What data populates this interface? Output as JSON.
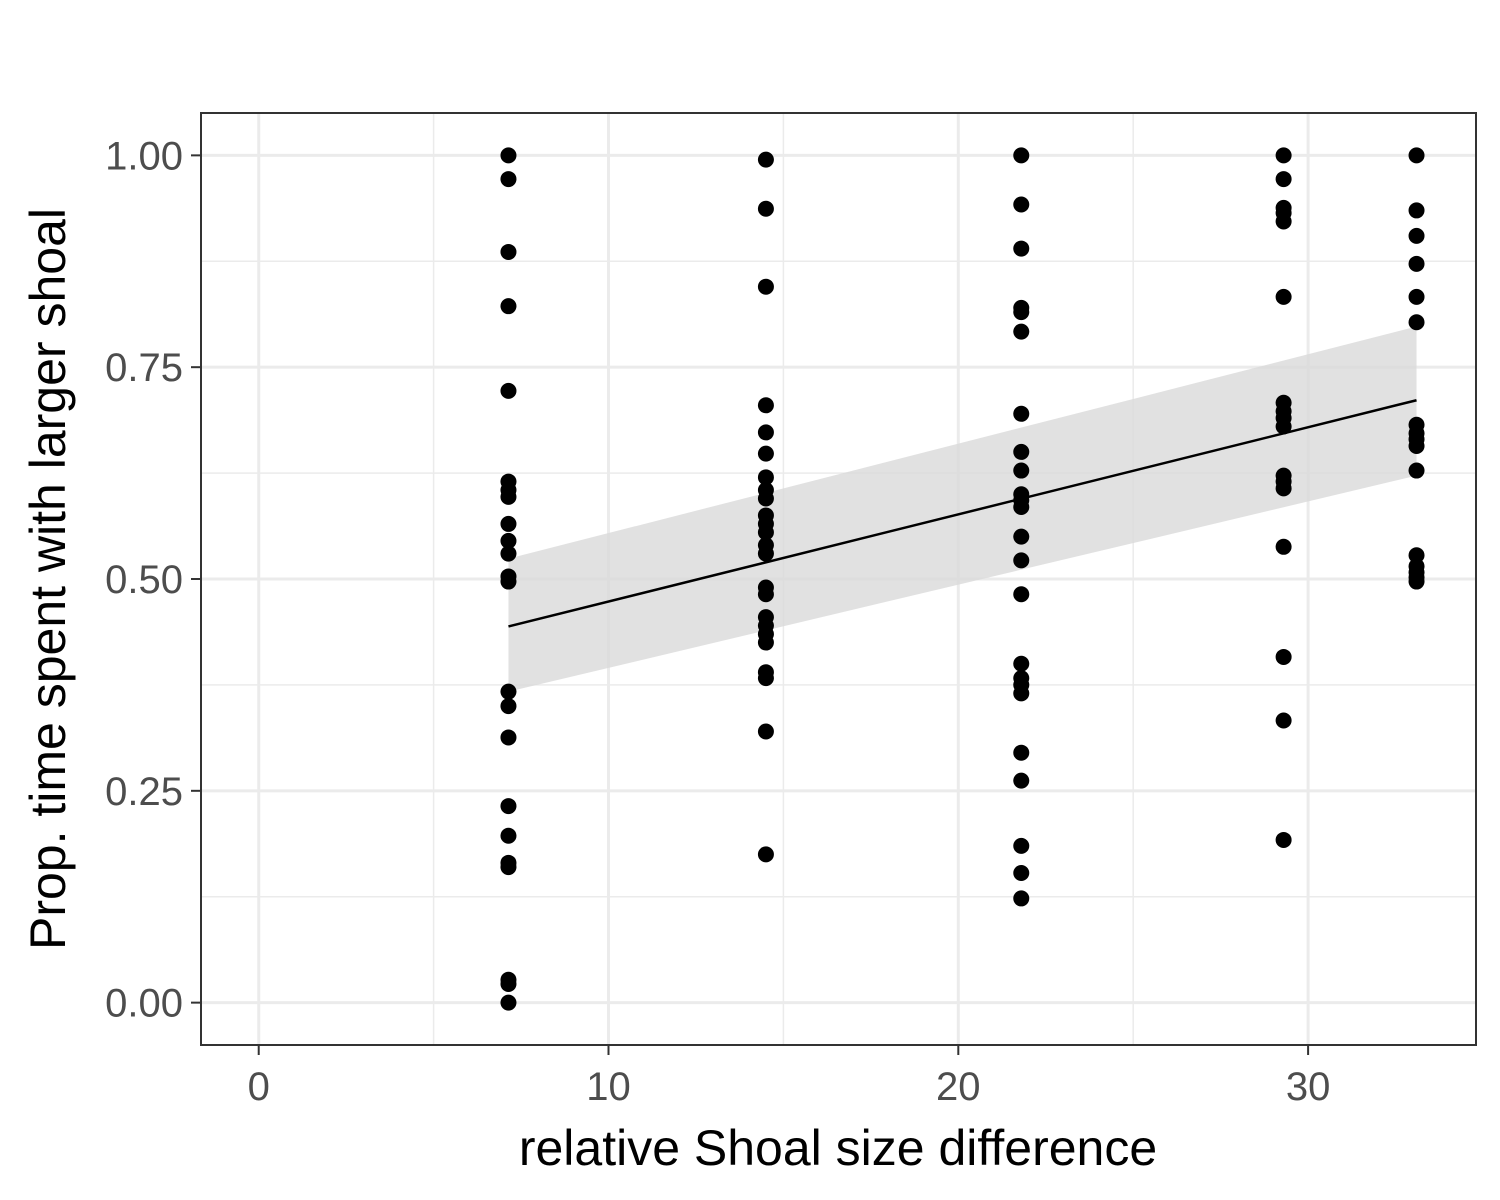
{
  "chart_data": {
    "type": "scatter",
    "xlabel": "relative Shoal size difference",
    "ylabel": "Prop. time spent with larger shoal",
    "xlim": [
      -1.65,
      34.8
    ],
    "ylim": [
      -0.05,
      1.05
    ],
    "x_ticks": [
      0,
      10,
      20,
      30
    ],
    "x_tick_labels": [
      "0",
      "10",
      "20",
      "30"
    ],
    "y_ticks": [
      0,
      0.25,
      0.5,
      0.75,
      1.0
    ],
    "y_tick_labels": [
      "0.00",
      "0.25",
      "0.50",
      "0.75",
      "1.00"
    ],
    "grid": true,
    "colors": {
      "points": "#000000",
      "ribbon": "#d9d9d9",
      "grid": "#ebebeb",
      "panel_border": "#333333"
    },
    "points": [
      {
        "x": 7.14,
        "y": 1.0
      },
      {
        "x": 7.14,
        "y": 0.972
      },
      {
        "x": 7.14,
        "y": 0.886
      },
      {
        "x": 7.14,
        "y": 0.822
      },
      {
        "x": 7.14,
        "y": 0.722
      },
      {
        "x": 7.14,
        "y": 0.615
      },
      {
        "x": 7.14,
        "y": 0.605
      },
      {
        "x": 7.14,
        "y": 0.597
      },
      {
        "x": 7.14,
        "y": 0.565
      },
      {
        "x": 7.14,
        "y": 0.545
      },
      {
        "x": 7.14,
        "y": 0.53
      },
      {
        "x": 7.14,
        "y": 0.503
      },
      {
        "x": 7.14,
        "y": 0.497
      },
      {
        "x": 7.14,
        "y": 0.367
      },
      {
        "x": 7.14,
        "y": 0.35
      },
      {
        "x": 7.14,
        "y": 0.313
      },
      {
        "x": 7.14,
        "y": 0.232
      },
      {
        "x": 7.14,
        "y": 0.197
      },
      {
        "x": 7.14,
        "y": 0.165
      },
      {
        "x": 7.14,
        "y": 0.16
      },
      {
        "x": 7.14,
        "y": 0.027
      },
      {
        "x": 7.14,
        "y": 0.022
      },
      {
        "x": 7.14,
        "y": 0.0
      },
      {
        "x": 14.5,
        "y": 0.995
      },
      {
        "x": 14.5,
        "y": 0.937
      },
      {
        "x": 14.5,
        "y": 0.845
      },
      {
        "x": 14.5,
        "y": 0.705
      },
      {
        "x": 14.5,
        "y": 0.673
      },
      {
        "x": 14.5,
        "y": 0.648
      },
      {
        "x": 14.5,
        "y": 0.62
      },
      {
        "x": 14.5,
        "y": 0.605
      },
      {
        "x": 14.5,
        "y": 0.595
      },
      {
        "x": 14.5,
        "y": 0.575
      },
      {
        "x": 14.5,
        "y": 0.565
      },
      {
        "x": 14.5,
        "y": 0.555
      },
      {
        "x": 14.5,
        "y": 0.54
      },
      {
        "x": 14.5,
        "y": 0.53
      },
      {
        "x": 14.5,
        "y": 0.49
      },
      {
        "x": 14.5,
        "y": 0.482
      },
      {
        "x": 14.5,
        "y": 0.455
      },
      {
        "x": 14.5,
        "y": 0.445
      },
      {
        "x": 14.5,
        "y": 0.435
      },
      {
        "x": 14.5,
        "y": 0.425
      },
      {
        "x": 14.5,
        "y": 0.39
      },
      {
        "x": 14.5,
        "y": 0.383
      },
      {
        "x": 14.5,
        "y": 0.32
      },
      {
        "x": 14.5,
        "y": 0.175
      },
      {
        "x": 21.8,
        "y": 1.0
      },
      {
        "x": 21.8,
        "y": 0.942
      },
      {
        "x": 21.8,
        "y": 0.89
      },
      {
        "x": 21.8,
        "y": 0.82
      },
      {
        "x": 21.8,
        "y": 0.815
      },
      {
        "x": 21.8,
        "y": 0.792
      },
      {
        "x": 21.8,
        "y": 0.695
      },
      {
        "x": 21.8,
        "y": 0.65
      },
      {
        "x": 21.8,
        "y": 0.628
      },
      {
        "x": 21.8,
        "y": 0.6
      },
      {
        "x": 21.8,
        "y": 0.593
      },
      {
        "x": 21.8,
        "y": 0.585
      },
      {
        "x": 21.8,
        "y": 0.55
      },
      {
        "x": 21.8,
        "y": 0.522
      },
      {
        "x": 21.8,
        "y": 0.482
      },
      {
        "x": 21.8,
        "y": 0.4
      },
      {
        "x": 21.8,
        "y": 0.383
      },
      {
        "x": 21.8,
        "y": 0.375
      },
      {
        "x": 21.8,
        "y": 0.365
      },
      {
        "x": 21.8,
        "y": 0.295
      },
      {
        "x": 21.8,
        "y": 0.262
      },
      {
        "x": 21.8,
        "y": 0.185
      },
      {
        "x": 21.8,
        "y": 0.153
      },
      {
        "x": 21.8,
        "y": 0.123
      },
      {
        "x": 29.3,
        "y": 1.0
      },
      {
        "x": 29.3,
        "y": 0.972
      },
      {
        "x": 29.3,
        "y": 0.938
      },
      {
        "x": 29.3,
        "y": 0.932
      },
      {
        "x": 29.3,
        "y": 0.922
      },
      {
        "x": 29.3,
        "y": 0.833
      },
      {
        "x": 29.3,
        "y": 0.708
      },
      {
        "x": 29.3,
        "y": 0.698
      },
      {
        "x": 29.3,
        "y": 0.69
      },
      {
        "x": 29.3,
        "y": 0.68
      },
      {
        "x": 29.3,
        "y": 0.622
      },
      {
        "x": 29.3,
        "y": 0.615
      },
      {
        "x": 29.3,
        "y": 0.607
      },
      {
        "x": 29.3,
        "y": 0.538
      },
      {
        "x": 29.3,
        "y": 0.408
      },
      {
        "x": 29.3,
        "y": 0.333
      },
      {
        "x": 29.3,
        "y": 0.192
      },
      {
        "x": 33.1,
        "y": 1.0
      },
      {
        "x": 33.1,
        "y": 0.935
      },
      {
        "x": 33.1,
        "y": 0.905
      },
      {
        "x": 33.1,
        "y": 0.872
      },
      {
        "x": 33.1,
        "y": 0.833
      },
      {
        "x": 33.1,
        "y": 0.803
      },
      {
        "x": 33.1,
        "y": 0.682
      },
      {
        "x": 33.1,
        "y": 0.672
      },
      {
        "x": 33.1,
        "y": 0.665
      },
      {
        "x": 33.1,
        "y": 0.657
      },
      {
        "x": 33.1,
        "y": 0.628
      },
      {
        "x": 33.1,
        "y": 0.528
      },
      {
        "x": 33.1,
        "y": 0.515
      },
      {
        "x": 33.1,
        "y": 0.508
      },
      {
        "x": 33.1,
        "y": 0.502
      },
      {
        "x": 33.1,
        "y": 0.497
      }
    ],
    "fit": {
      "type": "linear",
      "x": [
        7.14,
        33.1
      ],
      "y": [
        0.444,
        0.711
      ],
      "ci_lower": [
        0.367,
        0.622
      ],
      "ci_upper": [
        0.524,
        0.798
      ]
    }
  }
}
